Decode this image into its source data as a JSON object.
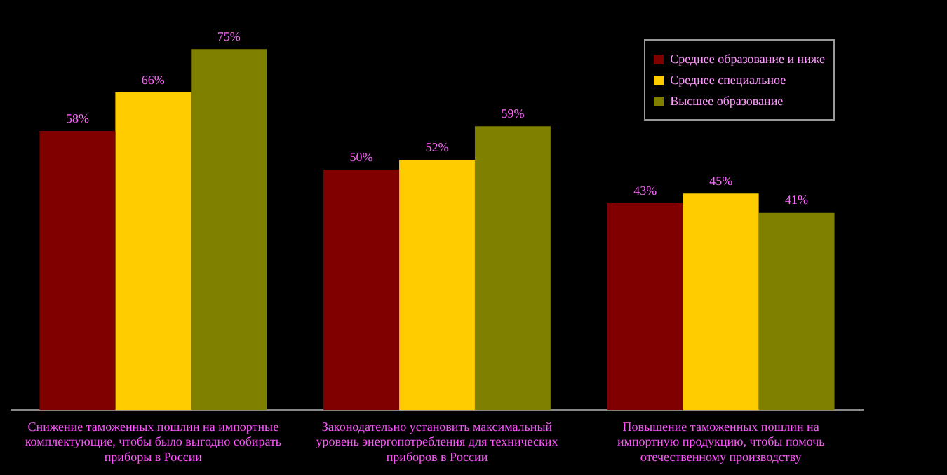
{
  "chart_data": {
    "type": "bar",
    "categories": [
      "Снижение таможенных пошлин на импортные комплектующие, чтобы было выгодно собирать приборы в России",
      "Законодательно установить максимальный уровень энергопотребления для технических приборов в России",
      "Повышение таможенных пошлин на импортную продукцию, чтобы помочь отечественному производству"
    ],
    "series": [
      {
        "name": "Среднее образование и ниже",
        "color": "#800000",
        "values": [
          58,
          50,
          43
        ],
        "value_labels": [
          "58%",
          "50%",
          "43%"
        ]
      },
      {
        "name": "Среднее специальное",
        "color": "#ffcc00",
        "values": [
          66,
          52,
          45
        ],
        "value_labels": [
          "66%",
          "52%",
          "45%"
        ]
      },
      {
        "name": "Высшее образование",
        "color": "#808000",
        "values": [
          75,
          59,
          41
        ],
        "value_labels": [
          "75%",
          "59%",
          "41%"
        ]
      }
    ],
    "legend": "top right",
    "grid": false
  }
}
